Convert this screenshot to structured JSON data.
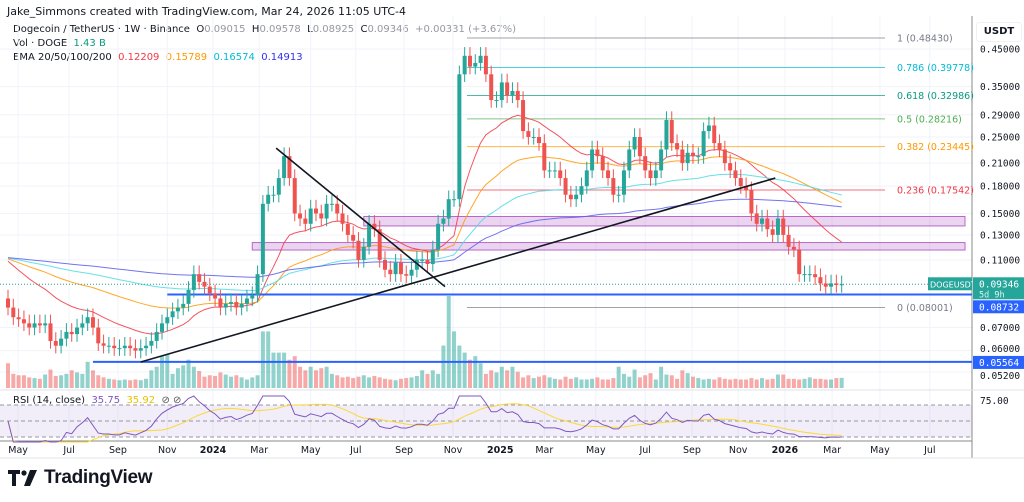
{
  "creator_line": "Jake_Simmons created with TradingView.com, Mar 24, 2026 11:05 UTC-4",
  "symbol": {
    "title": "Dogecoin / TetherUS · 1W · Binance",
    "open_label": "O",
    "open": "0.09015",
    "high_label": "H",
    "high": "0.09578",
    "low_label": "L",
    "low": "0.08925",
    "close_label": "C",
    "close": "0.09346",
    "change": "+0.00331 (+3.67%)"
  },
  "volume_legend": {
    "label": "Vol · DOGE",
    "value": "1.43 B"
  },
  "ema_legend": {
    "label": "EMA 20/50/100/200",
    "values": [
      "0.12209",
      "0.15789",
      "0.16574",
      "0.14913"
    ]
  },
  "rsi_legend": {
    "label": "RSI (14, close)",
    "rsi": "35.75",
    "ma": "35.92",
    "icons": [
      "hidden-value-icon",
      "hidden-value-icon"
    ]
  },
  "axis_currency": "USDT",
  "price_labels": {
    "ticker": "DOGEUSDT",
    "last": "0.09346",
    "countdown": "5d 9h",
    "line1": "0.08732",
    "line2": "0.05564"
  },
  "rsi_axis_label": "75.00",
  "footer_brand": "TradingView",
  "colors": {
    "up": "#26a69a",
    "down": "#ef5350",
    "ema20": "#f23645",
    "ema50": "#ff9800",
    "ema100": "#4dd9e6",
    "ema200": "#5b5bf0",
    "hline": "#2962ff",
    "zone": "#9c27b0",
    "rsi": "#7e57c2",
    "rsi_ma": "#fdd835"
  },
  "chart_data": {
    "type": "candlestick",
    "title": "Dogecoin / TetherUS · 1W · Binance",
    "interval": "weekly",
    "scale": "log",
    "ylim": [
      0.05,
      0.5
    ],
    "y_ticks": [
      "0.45000",
      "0.35000",
      "0.29000",
      "0.25000",
      "0.21000",
      "0.18000",
      "0.15000",
      "0.13000",
      "0.11000",
      "0.07000",
      "0.06000",
      "0.05200"
    ],
    "x_ticks": [
      {
        "label": "May",
        "week": 1.9
      },
      {
        "label": "Jul",
        "week": 11.5
      },
      {
        "label": "Sep",
        "week": 20.7
      },
      {
        "label": "Nov",
        "week": 30
      },
      {
        "label": "2024",
        "week": 38.6,
        "bold": true
      },
      {
        "label": "Mar",
        "week": 47.3
      },
      {
        "label": "May",
        "week": 57
      },
      {
        "label": "Jul",
        "week": 65.5
      },
      {
        "label": "Sep",
        "week": 74.6
      },
      {
        "label": "Nov",
        "week": 83.8
      },
      {
        "label": "2025",
        "week": 92.7,
        "bold": true
      },
      {
        "label": "Mar",
        "week": 101
      },
      {
        "label": "May",
        "week": 110.7
      },
      {
        "label": "Jul",
        "week": 120
      },
      {
        "label": "Sep",
        "week": 128.8
      },
      {
        "label": "Nov",
        "week": 137.5
      },
      {
        "label": "2026",
        "week": 146.3,
        "bold": true
      },
      {
        "label": "Mar",
        "week": 155.2
      },
      {
        "label": "May",
        "week": 164.2
      },
      {
        "label": "Jul",
        "week": 173.6
      }
    ],
    "closes": [
      0.08,
      0.075,
      0.074,
      0.072,
      0.07,
      0.072,
      0.071,
      0.072,
      0.064,
      0.062,
      0.065,
      0.068,
      0.067,
      0.07,
      0.072,
      0.075,
      0.07,
      0.063,
      0.062,
      0.062,
      0.061,
      0.061,
      0.062,
      0.061,
      0.06,
      0.061,
      0.062,
      0.064,
      0.068,
      0.072,
      0.075,
      0.078,
      0.08,
      0.082,
      0.09,
      0.1,
      0.095,
      0.092,
      0.088,
      0.085,
      0.08,
      0.082,
      0.083,
      0.08,
      0.082,
      0.085,
      0.087,
      0.1,
      0.16,
      0.17,
      0.17,
      0.19,
      0.22,
      0.19,
      0.15,
      0.145,
      0.14,
      0.155,
      0.15,
      0.145,
      0.16,
      0.16,
      0.15,
      0.14,
      0.13,
      0.125,
      0.11,
      0.12,
      0.14,
      0.135,
      0.11,
      0.103,
      0.1,
      0.108,
      0.1,
      0.099,
      0.103,
      0.11,
      0.11,
      0.107,
      0.118,
      0.14,
      0.145,
      0.165,
      0.165,
      0.38,
      0.43,
      0.4,
      0.41,
      0.43,
      0.38,
      0.32,
      0.32,
      0.36,
      0.33,
      0.34,
      0.32,
      0.26,
      0.25,
      0.25,
      0.24,
      0.2,
      0.2,
      0.2,
      0.19,
      0.17,
      0.165,
      0.17,
      0.18,
      0.2,
      0.23,
      0.22,
      0.2,
      0.19,
      0.17,
      0.17,
      0.2,
      0.23,
      0.25,
      0.22,
      0.2,
      0.19,
      0.2,
      0.23,
      0.28,
      0.24,
      0.23,
      0.21,
      0.225,
      0.22,
      0.22,
      0.26,
      0.27,
      0.24,
      0.23,
      0.21,
      0.2,
      0.19,
      0.18,
      0.175,
      0.15,
      0.14,
      0.145,
      0.135,
      0.13,
      0.145,
      0.13,
      0.12,
      0.118,
      0.1,
      0.1,
      0.1,
      0.098,
      0.094,
      0.092,
      0.094,
      0.093,
      0.09346
    ],
    "volumes_b": [
      3.5,
      2,
      1.8,
      1.8,
      1.5,
      1.4,
      1.3,
      1.9,
      2.6,
      1.7,
      1.8,
      2,
      2.5,
      2.2,
      2,
      3.7,
      2.5,
      1.8,
      1.5,
      1.3,
      1.2,
      1.1,
      1.2,
      1.1,
      1.2,
      1.1,
      1.3,
      2.5,
      3,
      4.5,
      4.8,
      2,
      2.8,
      3.2,
      4,
      3,
      2.4,
      1.6,
      1.8,
      1.7,
      2.2,
      1.9,
      1.6,
      1.8,
      1.5,
      1.2,
      1.5,
      1.8,
      8,
      8,
      5,
      5,
      5,
      4,
      4.5,
      3,
      2.5,
      3,
      2.5,
      2.8,
      3,
      2,
      1.8,
      1.5,
      1.6,
      1.4,
      1.6,
      1.8,
      1.5,
      1.7,
      1.5,
      1.3,
      1.2,
      1.1,
      1.3,
      1.4,
      1.5,
      1.7,
      2.5,
      2,
      2.5,
      2,
      6,
      13,
      8,
      6,
      5,
      4,
      4.5,
      3.5,
      2,
      2.5,
      2.2,
      3,
      2.5,
      3,
      2.3,
      1.5,
      1.8,
      1.4,
      1.6,
      1.8,
      1.5,
      1.3,
      1.2,
      1.6,
      1.3,
      1.5,
      1.2,
      1.2,
      1.3,
      1.5,
      1.2,
      1.2,
      1.4,
      3,
      2,
      1.6,
      2.6,
      1.5,
      1.8,
      2.1,
      1.2,
      3,
      1.9,
      1.8,
      1.3,
      2.5,
      2.1,
      1.6,
      1.4,
      1.2,
      1.3,
      1.2,
      1.5,
      1.3,
      1.2,
      1.3,
      1.2,
      1.2,
      1.4,
      1.2,
      1.4,
      1.2,
      1.3,
      1.9,
      1.9,
      1.3,
      1.3,
      1.2,
      1.3,
      1.5,
      1.3,
      1.3,
      1.2,
      1.2,
      1.4,
      1.43
    ],
    "fib_levels": [
      {
        "label": "1 (0.48430)",
        "price": 0.4843,
        "color": "#787b86"
      },
      {
        "label": "0.786 (0.39778)",
        "price": 0.39778,
        "color": "#00bcd4"
      },
      {
        "label": "0.618 (0.32986)",
        "price": 0.32986,
        "color": "#089981"
      },
      {
        "label": "0.5 (0.28216)",
        "price": 0.28216,
        "color": "#4caf50"
      },
      {
        "label": "0.382 (0.23445)",
        "price": 0.23445,
        "color": "#ff9800"
      },
      {
        "label": "0.236 (0.17542)",
        "price": 0.17542,
        "color": "#f23645"
      },
      {
        "label": "0 (0.08001)",
        "price": 0.08001,
        "color": "#787b86"
      }
    ],
    "fib_start_week": 87,
    "horizontal_lines": [
      {
        "price": 0.08732,
        "from_week": 30
      },
      {
        "price": 0.05564,
        "from_week": 16
      }
    ],
    "zones": [
      {
        "low": 0.138,
        "high": 0.147,
        "from_week": 67
      },
      {
        "low": 0.1175,
        "high": 0.1235,
        "from_week": 46
      }
    ],
    "trendlines": [
      {
        "from": {
          "week": 50.5,
          "price": 0.232
        },
        "to": {
          "week": 82.3,
          "price": 0.092
        }
      },
      {
        "from": {
          "week": 25,
          "price": 0.0556
        },
        "to": {
          "week": 144.5,
          "price": 0.19
        }
      }
    ],
    "rsi_levels": [
      70,
      50,
      30
    ]
  }
}
